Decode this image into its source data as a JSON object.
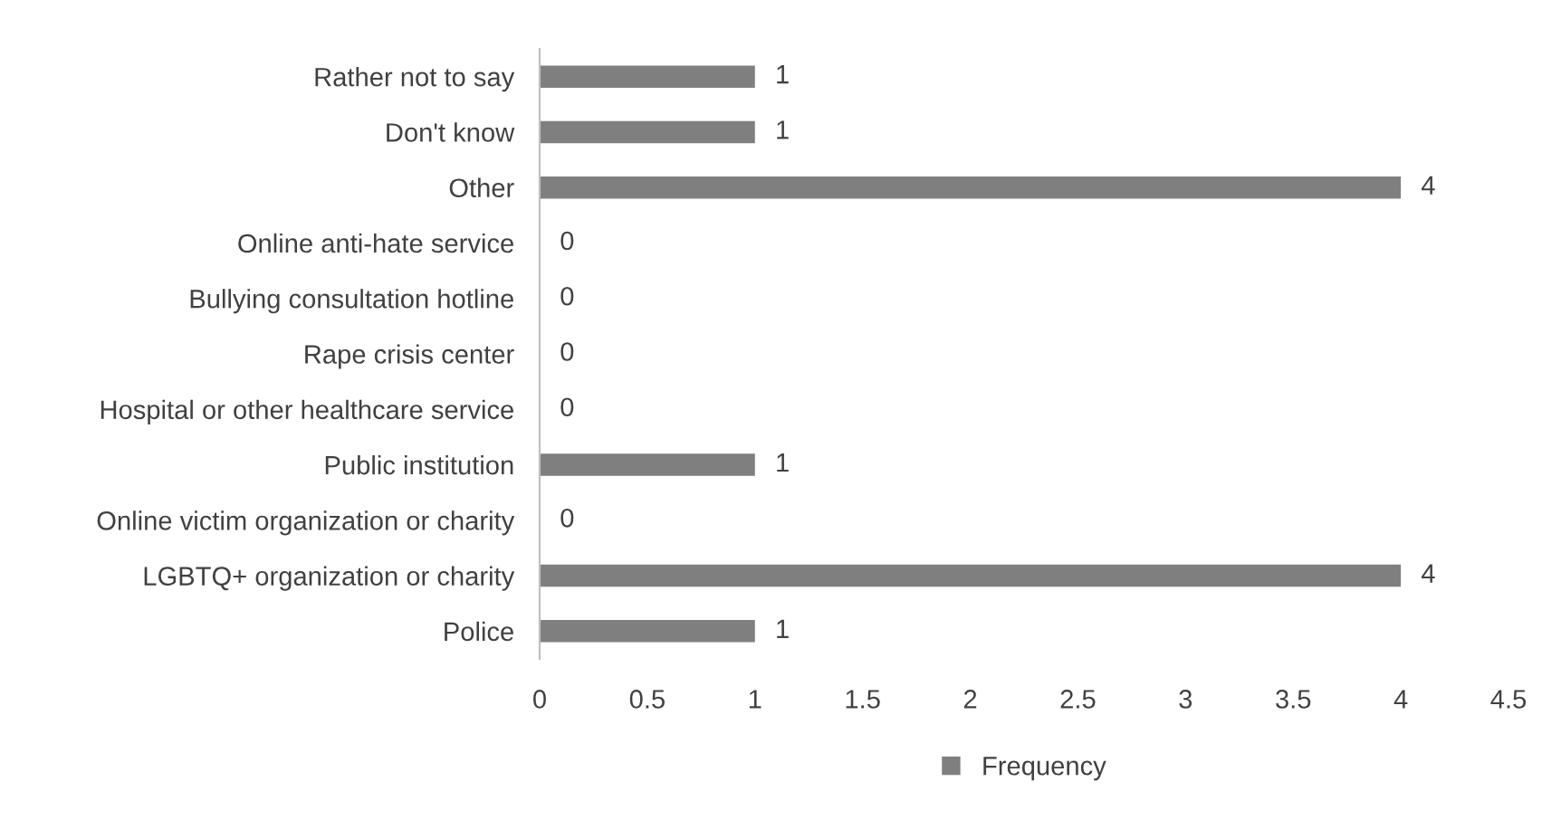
{
  "chart_data": {
    "type": "bar",
    "orientation": "horizontal",
    "categories": [
      "Rather not to say",
      "Don't know",
      "Other",
      "Online anti-hate service",
      "Bullying consultation hotline",
      "Rape crisis center",
      "Hospital or other healthcare service",
      "Public institution",
      "Online victim organization or charity",
      "LGBTQ+ organization or charity",
      "Police"
    ],
    "series": [
      {
        "name": "Frequency",
        "color": "#7f7f7f",
        "values": [
          1,
          1,
          4,
          0,
          0,
          0,
          0,
          1,
          0,
          4,
          1
        ]
      }
    ],
    "xlim": [
      0,
      4.5
    ],
    "xticks": [
      0,
      0.5,
      1,
      1.5,
      2,
      2.5,
      3,
      3.5,
      4,
      4.5
    ],
    "data_labels": true,
    "grid": false,
    "legend": "bottom"
  }
}
